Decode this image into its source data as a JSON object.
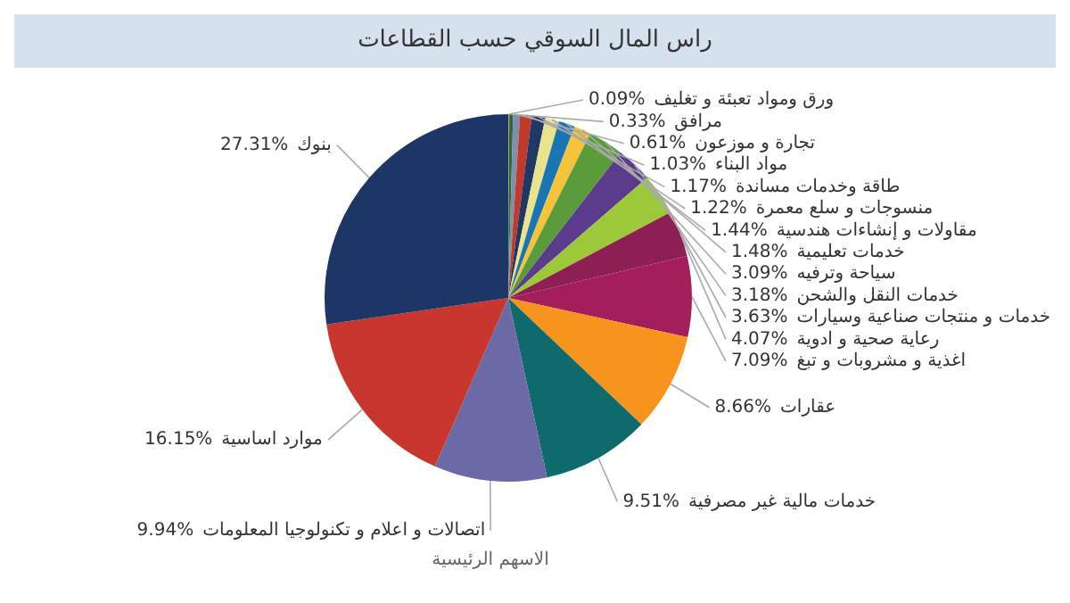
{
  "chart_data": {
    "type": "pie",
    "title": "راس المال السوقي حسب القطاعات",
    "categories": [
      "ورق ومواد تعبئة و تغليف",
      "مرافق",
      "تجارة و موزعون",
      "مواد البناء",
      "طاقة وخدمات مساندة",
      "منسوجات و سلع معمرة",
      "مقاولات و إنشاءات هندسية",
      "خدمات تعليمية",
      "سياحة وترفيه",
      "خدمات النقل والشحن",
      "خدمات و منتجات صناعية وسيارات",
      "رعاية صحية و ادوية",
      "اغذية و مشروبات و تبغ",
      "عقارات",
      "خدمات مالية غير مصرفية",
      "اتصالات و اعلام و تكنولوجيا المعلومات",
      "موارد اساسية",
      "بنوك"
    ],
    "values": [
      0.09,
      0.33,
      0.61,
      1.03,
      1.17,
      1.22,
      1.44,
      1.48,
      3.09,
      3.18,
      3.63,
      4.07,
      7.09,
      8.66,
      9.51,
      9.94,
      16.15,
      27.31
    ],
    "colors": [
      "#f7941d",
      "#1e6b52",
      "#7f8fa6",
      "#c0392b",
      "#1f3864",
      "#e9e48c",
      "#1a75b5",
      "#f6c43a",
      "#5a9b3b",
      "#5b3c8c",
      "#9bc93a",
      "#8e1f52",
      "#a31f5c",
      "#f7941d",
      "#0f6b6b",
      "#6b6aa6",
      "#c8372d",
      "#1c3766"
    ],
    "value_labels": [
      "0.09%",
      "0.33%",
      "0.61%",
      "1.03%",
      "1.17%",
      "1.22%",
      "1.44%",
      "1.48%",
      "3.09%",
      "3.18%",
      "3.63%",
      "4.07%",
      "7.09%",
      "8.66%",
      "9.51%",
      "9.94%",
      "16.15%",
      "27.31%"
    ],
    "annotations": [
      "الاسهم الرئيسية"
    ]
  }
}
